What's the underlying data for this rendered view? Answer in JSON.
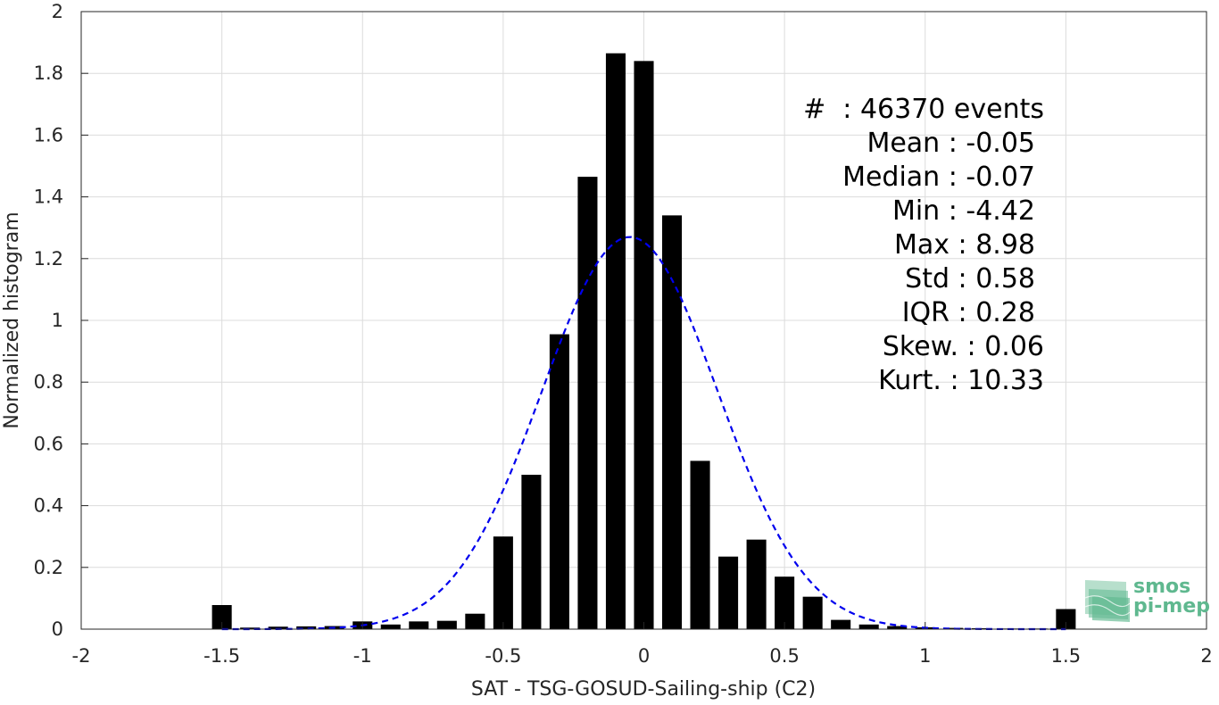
{
  "chart_data": {
    "type": "bar",
    "xlabel": "SAT - TSG-GOSUD-Sailing-ship (C2)",
    "ylabel": "Normalized histogram",
    "xlim": [
      -2,
      2
    ],
    "ylim": [
      0,
      2
    ],
    "x_ticks": [
      -2,
      -1.5,
      -1,
      -0.5,
      0,
      0.5,
      1,
      1.5,
      2
    ],
    "x_tick_labels": [
      "-2",
      "-1.5",
      "-1",
      "-0.5",
      "0",
      "0.5",
      "1",
      "1.5",
      "2"
    ],
    "y_ticks": [
      0,
      0.2,
      0.4,
      0.6,
      0.8,
      1,
      1.2,
      1.4,
      1.6,
      1.8,
      2
    ],
    "y_tick_labels": [
      "0",
      "0.2",
      "0.4",
      "0.6",
      "0.8",
      "1",
      "1.2",
      "1.4",
      "1.6",
      "1.8",
      "2"
    ],
    "grid": true,
    "bar_width": 0.07,
    "bins": {
      "x": [
        -1.5,
        -1.4,
        -1.3,
        -1.2,
        -1.1,
        -1.0,
        -0.9,
        -0.8,
        -0.7,
        -0.6,
        -0.5,
        -0.4,
        -0.3,
        -0.2,
        -0.1,
        0.0,
        0.1,
        0.2,
        0.3,
        0.4,
        0.5,
        0.6,
        0.7,
        0.8,
        0.9,
        1.0,
        1.1,
        1.2,
        1.3,
        1.4,
        1.5
      ],
      "y": [
        0.078,
        0.005,
        0.008,
        0.009,
        0.01,
        0.025,
        0.015,
        0.025,
        0.027,
        0.05,
        0.3,
        0.5,
        0.955,
        1.465,
        1.865,
        1.84,
        1.34,
        0.545,
        0.235,
        0.29,
        0.17,
        0.105,
        0.03,
        0.015,
        0.01,
        0.006,
        0.004,
        0.003,
        0.002,
        0.002,
        0.065
      ]
    },
    "fit": {
      "type": "gaussian",
      "mean": -0.05,
      "std": 0.3125,
      "peak": 1.27,
      "color": "#0000ee",
      "style": "dashed"
    },
    "bar_color": "#000000",
    "stats": {
      "count_line": "#  : 46370 events",
      "lines": [
        "Mean : -0.05",
        "Median : -0.07",
        "Min : -4.42",
        "Max : 8.98",
        "Std : 0.58",
        "IQR : 0.28",
        "Skew. : 0.06",
        "Kurt. : 10.33"
      ]
    },
    "logo": {
      "line1": "smos",
      "line2": "pi-mep"
    }
  }
}
